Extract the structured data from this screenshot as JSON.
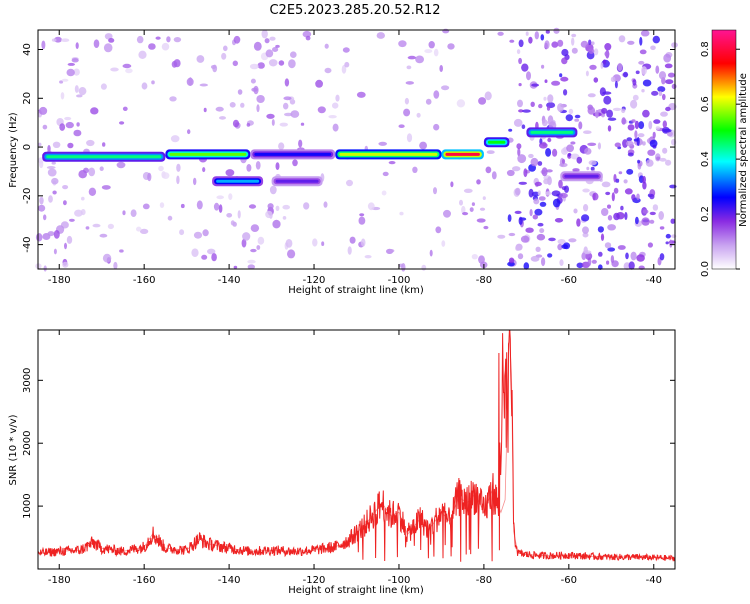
{
  "title": "C2E5.2023.285.20.52.R12",
  "chart_data": [
    {
      "type": "heatmap",
      "xlabel": "Height of straight line (km)",
      "ylabel": "Frequency (Hz)",
      "xlim": [
        -185,
        -35
      ],
      "ylim": [
        -50,
        48
      ],
      "xticks": [
        -180,
        -160,
        -140,
        -120,
        -100,
        -80,
        -60,
        -40
      ],
      "yticks": [
        -40,
        -20,
        0,
        20,
        40
      ],
      "colorbar": {
        "label": "Normalized spectral amplitude",
        "range": [
          0,
          0.87
        ],
        "ticks": [
          0.0,
          0.2,
          0.4,
          0.6,
          0.8
        ],
        "colors": [
          "#ffffff",
          "#8a2be2",
          "#0000ff",
          "#00ffff",
          "#00ff00",
          "#ffff00",
          "#ff0000",
          "#ff1493"
        ]
      },
      "bands": [
        {
          "x": [
            -184,
            -155
          ],
          "y": -4,
          "amp": 0.45
        },
        {
          "x": [
            -155,
            -135
          ],
          "y": -3,
          "amp": 0.55
        },
        {
          "x": [
            -135,
            -115
          ],
          "y": -3,
          "amp": 0.25
        },
        {
          "x": [
            -115,
            -90
          ],
          "y": -3,
          "amp": 0.6
        },
        {
          "x": [
            -90,
            -80
          ],
          "y": -3,
          "amp": 0.8
        },
        {
          "x": [
            -80,
            -74
          ],
          "y": 2,
          "amp": 0.5
        },
        {
          "x": [
            -70,
            -58
          ],
          "y": 6,
          "amp": 0.45
        },
        {
          "x": [
            -144,
            -132
          ],
          "y": -14,
          "amp": 0.35
        },
        {
          "x": [
            -130,
            -118
          ],
          "y": -14,
          "amp": 0.2
        },
        {
          "x": [
            -62,
            -52
          ],
          "y": -12,
          "amp": 0.2
        }
      ]
    },
    {
      "type": "line",
      "xlabel": "Height of straight line (km)",
      "ylabel": "SNR (10 * v/v)",
      "xlim": [
        -185,
        -35
      ],
      "ylim": [
        0,
        3800
      ],
      "xticks": [
        -180,
        -160,
        -140,
        -120,
        -100,
        -80,
        -60,
        -40
      ],
      "yticks": [
        1000,
        2000,
        3000
      ],
      "color": "#ee2222",
      "x": [
        -185,
        -180,
        -175,
        -172,
        -170,
        -165,
        -160,
        -158,
        -155,
        -150,
        -147,
        -145,
        -140,
        -135,
        -130,
        -125,
        -120,
        -115,
        -112,
        -108,
        -104,
        -102,
        -100,
        -98,
        -95,
        -93,
        -90,
        -88,
        -86,
        -84,
        -82,
        -80,
        -78,
        -76,
        -75,
        -74,
        -73.5,
        -73,
        -72,
        -70,
        -65,
        -60,
        -55,
        -50,
        -45,
        -40,
        -35
      ],
      "y": [
        250,
        280,
        300,
        420,
        330,
        280,
        350,
        560,
        330,
        300,
        480,
        400,
        330,
        280,
        300,
        280,
        300,
        350,
        450,
        700,
        1050,
        850,
        900,
        550,
        800,
        620,
        900,
        750,
        1150,
        1050,
        1200,
        900,
        1250,
        900,
        1100,
        3750,
        3100,
        600,
        250,
        230,
        210,
        220,
        200,
        190,
        190,
        180,
        170
      ]
    }
  ]
}
